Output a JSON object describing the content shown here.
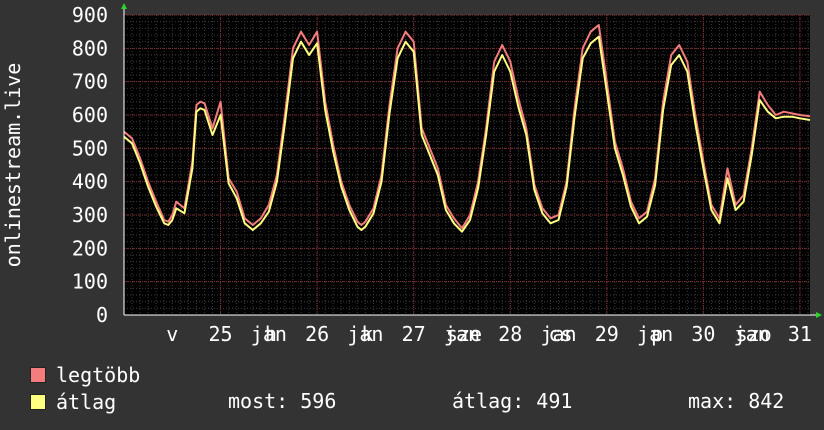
{
  "chart_data": {
    "type": "line",
    "ylabel": "onlinestream.live",
    "ylim": [
      0,
      900
    ],
    "yticks": [
      0,
      100,
      200,
      300,
      400,
      500,
      600,
      700,
      800,
      900
    ],
    "x_tick_labels": [
      "v",
      "25",
      "jan",
      "h",
      "26",
      "jan",
      "k",
      "27",
      "jan",
      "sze",
      "28",
      "jan",
      "cs",
      "29",
      "jan",
      "p",
      "30",
      "jan",
      "szo",
      "31"
    ],
    "x_tick_label_hours": [
      12,
      24,
      36,
      36.5,
      48,
      60,
      60.5,
      72,
      84,
      84.5,
      96,
      108,
      108.5,
      120,
      132,
      132.5,
      144,
      156,
      156.5,
      168
    ],
    "x_range_hours": [
      0,
      170.5
    ],
    "grid": true,
    "series": [
      {
        "name": "legtöbb",
        "color": "#f47c7c",
        "x_hours": [
          0,
          2,
          4,
          6,
          8,
          10,
          11,
          12,
          13,
          15,
          17,
          18,
          19,
          20,
          22,
          24,
          26,
          28,
          30,
          32,
          34,
          36,
          38,
          40,
          42,
          44,
          46,
          48,
          50,
          52,
          54,
          56,
          58,
          59,
          60,
          62,
          64,
          66,
          68,
          70,
          72,
          74,
          76,
          78,
          80,
          82,
          84,
          86,
          88,
          90,
          92,
          94,
          96,
          98,
          100,
          102,
          104,
          106,
          108,
          110,
          112,
          114,
          116,
          118,
          120,
          122,
          124,
          126,
          128,
          130,
          132,
          134,
          136,
          138,
          140,
          142,
          144,
          146,
          148,
          150,
          152,
          154,
          156,
          158,
          160,
          162,
          164,
          166,
          168,
          170.5
        ],
        "values": [
          550,
          530,
          470,
          400,
          340,
          285,
          280,
          300,
          340,
          320,
          460,
          630,
          640,
          635,
          560,
          640,
          410,
          370,
          290,
          270,
          290,
          330,
          420,
          600,
          800,
          850,
          810,
          850,
          640,
          510,
          400,
          330,
          280,
          270,
          280,
          320,
          420,
          630,
          800,
          850,
          820,
          560,
          500,
          440,
          330,
          290,
          260,
          300,
          400,
          560,
          760,
          810,
          760,
          650,
          560,
          390,
          320,
          290,
          300,
          400,
          620,
          800,
          850,
          870,
          700,
          520,
          440,
          340,
          290,
          310,
          410,
          640,
          780,
          810,
          760,
          600,
          460,
          330,
          290,
          440,
          330,
          360,
          500,
          670,
          630,
          600,
          610,
          605,
          600,
          596
        ],
        "points": []
      },
      {
        "name": "átlag",
        "color": "#ffff80",
        "x_hours": [
          0,
          2,
          4,
          6,
          8,
          10,
          11,
          12,
          13,
          15,
          17,
          18,
          19,
          20,
          22,
          24,
          26,
          28,
          30,
          32,
          34,
          36,
          38,
          40,
          42,
          44,
          46,
          48,
          50,
          52,
          54,
          56,
          58,
          59,
          60,
          62,
          64,
          66,
          68,
          70,
          72,
          74,
          76,
          78,
          80,
          82,
          84,
          86,
          88,
          90,
          92,
          94,
          96,
          98,
          100,
          102,
          104,
          106,
          108,
          110,
          112,
          114,
          116,
          118,
          120,
          122,
          124,
          126,
          128,
          130,
          132,
          134,
          136,
          138,
          140,
          142,
          144,
          146,
          148,
          150,
          152,
          154,
          156,
          158,
          160,
          162,
          164,
          166,
          168,
          170.5
        ],
        "values": [
          535,
          515,
          455,
          385,
          325,
          275,
          270,
          285,
          320,
          305,
          440,
          610,
          620,
          615,
          540,
          600,
          395,
          350,
          275,
          255,
          275,
          310,
          400,
          575,
          770,
          820,
          780,
          815,
          615,
          490,
          385,
          315,
          265,
          255,
          265,
          305,
          400,
          605,
          770,
          820,
          790,
          540,
          480,
          420,
          315,
          275,
          250,
          285,
          380,
          540,
          730,
          780,
          730,
          625,
          540,
          375,
          305,
          275,
          285,
          385,
          595,
          770,
          815,
          835,
          670,
          500,
          420,
          325,
          275,
          295,
          390,
          615,
          750,
          780,
          730,
          575,
          440,
          315,
          275,
          410,
          315,
          340,
          480,
          645,
          610,
          590,
          595,
          595,
          590,
          585
        ],
        "points": []
      }
    ],
    "stats": {
      "most": 596,
      "atlag": 491,
      "max": 842
    }
  },
  "legend": {
    "max_label": "legtöbb",
    "avg_label": "átlag",
    "most_text": "most: 596",
    "atlag_text": "átlag: 491",
    "max_text": "max: 842"
  }
}
